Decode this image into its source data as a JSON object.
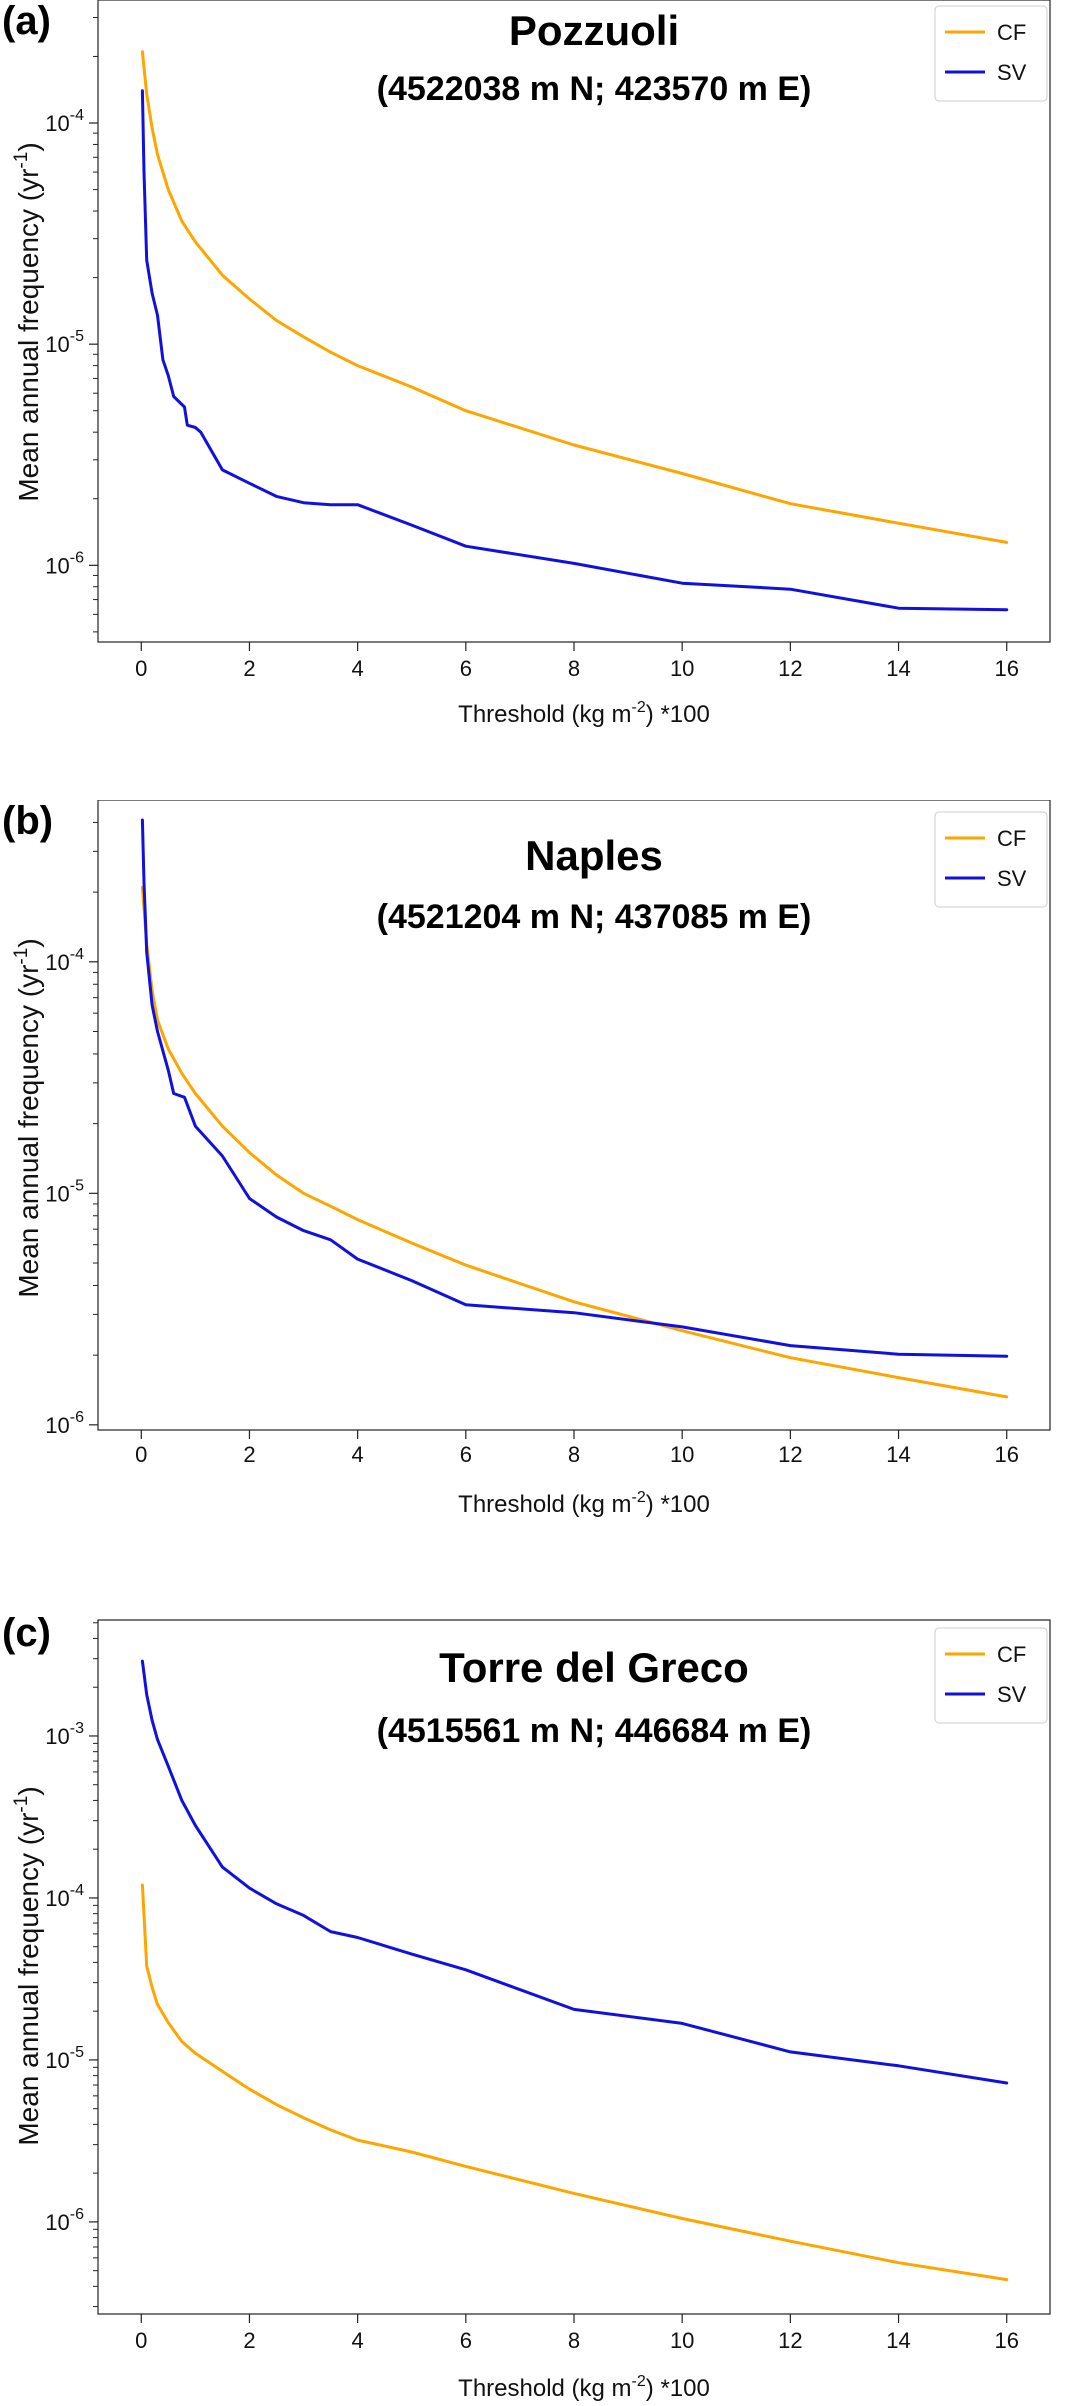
{
  "chart_data": [
    {
      "type": "line",
      "panel_label": "(a)",
      "title": "Pozzuoli",
      "subtitle": "(4522038 m N; 423570 m E)",
      "ylabel_main": "Mean annual frequency (yr",
      "ylabel_sup": "-1",
      "ylabel_end": ")",
      "xlabel_main": "Threshold (kg m",
      "xlabel_sup": "-2",
      "xlabel_end": ")  *100",
      "y_scale": "log",
      "ylim": [
        4.5e-07,
        0.00036
      ],
      "xlim": [
        -0.8,
        16.8
      ],
      "x_ticks": [
        0,
        2,
        4,
        6,
        8,
        10,
        12,
        14,
        16
      ],
      "x_tick_labels": [
        "0",
        "2",
        "4",
        "6",
        "8",
        "10",
        "12",
        "14",
        "16"
      ],
      "y_ticks": [
        1e-06,
        1e-05,
        0.0001
      ],
      "y_tick_labels": [
        {
          "base": "10",
          "exp": "-6"
        },
        {
          "base": "10",
          "exp": "-5"
        },
        {
          "base": "10",
          "exp": "-4"
        }
      ],
      "legend": "top-right",
      "series": [
        {
          "name": "CF",
          "color": "#ffa500",
          "x": [
            0.02,
            0.1,
            0.2,
            0.3,
            0.5,
            0.75,
            1,
            1.5,
            2,
            2.5,
            3,
            3.5,
            4,
            5,
            6,
            8,
            10,
            12,
            14,
            16
          ],
          "y": [
            0.00021,
            0.000135,
            9.5e-05,
            7.2e-05,
            5e-05,
            3.6e-05,
            2.9e-05,
            2.05e-05,
            1.6e-05,
            1.28e-05,
            1.08e-05,
            9.2e-06,
            8e-06,
            6.4e-06,
            5e-06,
            3.5e-06,
            2.6e-06,
            1.9e-06,
            1.55e-06,
            1.27e-06
          ]
        },
        {
          "name": "SV",
          "color": "#1010e0",
          "x": [
            0.02,
            0.05,
            0.1,
            0.2,
            0.3,
            0.4,
            0.5,
            0.6,
            0.8,
            0.85,
            1.0,
            1.1,
            1.5,
            2,
            2.5,
            3,
            3.5,
            4,
            5,
            6,
            8,
            10,
            12,
            14,
            16
          ],
          "y": [
            0.00014,
            6e-05,
            2.4e-05,
            1.7e-05,
            1.35e-05,
            8.5e-06,
            7.2e-06,
            5.8e-06,
            5.2e-06,
            4.3e-06,
            4.2e-06,
            4e-06,
            2.7e-06,
            2.35e-06,
            2.05e-06,
            1.92e-06,
            1.88e-06,
            1.88e-06,
            1.52e-06,
            1.22e-06,
            1.02e-06,
            8.3e-07,
            7.8e-07,
            6.4e-07,
            6.3e-07
          ]
        }
      ]
    },
    {
      "type": "line",
      "panel_label": "(b)",
      "title": "Naples",
      "subtitle": "(4521204 m N; 437085 m E)",
      "ylabel_main": "Mean annual frequency (yr",
      "ylabel_sup": "-1",
      "ylabel_end": ")",
      "xlabel_main": "Threshold (kg m",
      "xlabel_sup": "-2",
      "xlabel_end": ")  *100",
      "y_scale": "log",
      "ylim": [
        9.5e-07,
        0.0005
      ],
      "xlim": [
        -0.8,
        16.8
      ],
      "x_ticks": [
        0,
        2,
        4,
        6,
        8,
        10,
        12,
        14,
        16
      ],
      "x_tick_labels": [
        "0",
        "2",
        "4",
        "6",
        "8",
        "10",
        "12",
        "14",
        "16"
      ],
      "y_ticks": [
        1e-06,
        1e-05,
        0.0001
      ],
      "y_tick_labels": [
        {
          "base": "10",
          "exp": "-6"
        },
        {
          "base": "10",
          "exp": "-5"
        },
        {
          "base": "10",
          "exp": "-4"
        }
      ],
      "legend": "top-right",
      "series": [
        {
          "name": "CF",
          "color": "#ffa500",
          "x": [
            0.02,
            0.1,
            0.2,
            0.3,
            0.5,
            0.75,
            1,
            1.5,
            2,
            2.5,
            3,
            3.5,
            4,
            5,
            6,
            8,
            10,
            12,
            14,
            16
          ],
          "y": [
            0.00021,
            0.00012,
            7.5e-05,
            5.6e-05,
            4.2e-05,
            3.3e-05,
            2.7e-05,
            1.95e-05,
            1.5e-05,
            1.2e-05,
            1e-05,
            8.8e-06,
            7.7e-06,
            6.1e-06,
            4.9e-06,
            3.4e-06,
            2.55e-06,
            1.95e-06,
            1.6e-06,
            1.32e-06
          ]
        },
        {
          "name": "SV",
          "color": "#1010e0",
          "x": [
            0.02,
            0.05,
            0.1,
            0.2,
            0.3,
            0.5,
            0.6,
            0.8,
            1.0,
            1.5,
            2,
            2.5,
            3,
            3.5,
            4,
            5,
            6,
            8,
            10,
            12,
            14,
            16
          ],
          "y": [
            0.00041,
            0.00022,
            0.00011,
            6.5e-05,
            5e-05,
            3.4e-05,
            2.7e-05,
            2.6e-05,
            1.95e-05,
            1.45e-05,
            9.5e-06,
            7.9e-06,
            6.9e-06,
            6.3e-06,
            5.2e-06,
            4.2e-06,
            3.3e-06,
            3.05e-06,
            2.65e-06,
            2.2e-06,
            2.02e-06,
            1.98e-06
          ]
        }
      ]
    },
    {
      "type": "line",
      "panel_label": "(c)",
      "title": "Torre del Greco",
      "subtitle": "(4515561 m N; 446684 m E)",
      "ylabel_main": "Mean annual frequency (yr",
      "ylabel_sup": "-1",
      "ylabel_end": ")",
      "xlabel_main": "Threshold (kg m",
      "xlabel_sup": "-2",
      "xlabel_end": ")  *100",
      "y_scale": "log",
      "ylim": [
        2.7e-07,
        0.0052
      ],
      "xlim": [
        -0.8,
        16.8
      ],
      "x_ticks": [
        0,
        2,
        4,
        6,
        8,
        10,
        12,
        14,
        16
      ],
      "x_tick_labels": [
        "0",
        "2",
        "4",
        "6",
        "8",
        "10",
        "12",
        "14",
        "16"
      ],
      "y_ticks": [
        1e-06,
        1e-05,
        0.0001,
        0.001
      ],
      "y_tick_labels": [
        {
          "base": "10",
          "exp": "-6"
        },
        {
          "base": "10",
          "exp": "-5"
        },
        {
          "base": "10",
          "exp": "-4"
        },
        {
          "base": "10",
          "exp": "-3"
        }
      ],
      "legend": "top-right",
      "series": [
        {
          "name": "CF",
          "color": "#ffa500",
          "x": [
            0.02,
            0.1,
            0.2,
            0.3,
            0.5,
            0.75,
            1,
            1.5,
            2,
            2.5,
            3,
            3.5,
            4,
            5,
            6,
            8,
            10,
            12,
            14,
            16
          ],
          "y": [
            0.00012,
            3.8e-05,
            2.8e-05,
            2.2e-05,
            1.7e-05,
            1.3e-05,
            1.1e-05,
            8.5e-06,
            6.6e-06,
            5.3e-06,
            4.4e-06,
            3.7e-06,
            3.2e-06,
            2.7e-06,
            2.2e-06,
            1.5e-06,
            1.05e-06,
            7.6e-07,
            5.6e-07,
            4.4e-07
          ]
        },
        {
          "name": "SV",
          "color": "#1010e0",
          "x": [
            0.02,
            0.1,
            0.2,
            0.3,
            0.5,
            0.75,
            1,
            1.5,
            2,
            2.5,
            3,
            3.5,
            4,
            5,
            6,
            8,
            10,
            12,
            14,
            16
          ],
          "y": [
            0.0029,
            0.0018,
            0.00125,
            0.00095,
            0.00065,
            0.0004,
            0.00028,
            0.000155,
            0.000115,
            9.2e-05,
            7.8e-05,
            6.2e-05,
            5.7e-05,
            4.5e-05,
            3.6e-05,
            2.05e-05,
            1.68e-05,
            1.12e-05,
            9.2e-06,
            7.2e-06
          ]
        }
      ]
    }
  ]
}
